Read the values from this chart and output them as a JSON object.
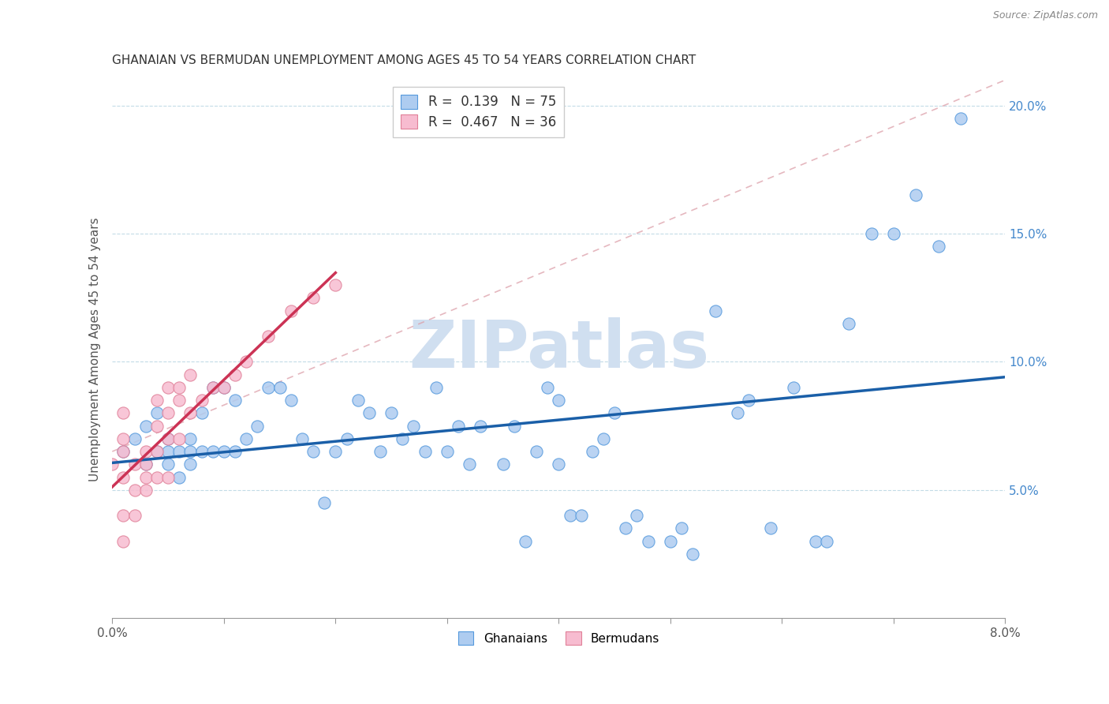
{
  "title": "GHANAIAN VS BERMUDAN UNEMPLOYMENT AMONG AGES 45 TO 54 YEARS CORRELATION CHART",
  "source": "Source: ZipAtlas.com",
  "ylabel": "Unemployment Among Ages 45 to 54 years",
  "xlim": [
    0.0,
    0.08
  ],
  "ylim": [
    0.0,
    0.21
  ],
  "ghanaian_R": 0.139,
  "ghanaian_N": 75,
  "bermudan_R": 0.467,
  "bermudan_N": 36,
  "blue_scatter_color": "#aeccf0",
  "blue_edge_color": "#5599dd",
  "pink_scatter_color": "#f7bcd0",
  "pink_edge_color": "#e08098",
  "blue_line_color": "#1a5fa8",
  "pink_line_color": "#cc3355",
  "diag_color": "#dda0aa",
  "ytick_color": "#4488cc",
  "watermark_color": "#d0dff0",
  "ghanaians_x": [
    0.001,
    0.002,
    0.003,
    0.003,
    0.004,
    0.004,
    0.005,
    0.005,
    0.005,
    0.006,
    0.006,
    0.007,
    0.007,
    0.007,
    0.008,
    0.008,
    0.009,
    0.009,
    0.01,
    0.01,
    0.011,
    0.011,
    0.012,
    0.013,
    0.014,
    0.015,
    0.016,
    0.017,
    0.018,
    0.019,
    0.02,
    0.021,
    0.022,
    0.023,
    0.024,
    0.025,
    0.026,
    0.027,
    0.028,
    0.029,
    0.03,
    0.031,
    0.032,
    0.033,
    0.035,
    0.036,
    0.037,
    0.038,
    0.039,
    0.04,
    0.04,
    0.041,
    0.042,
    0.043,
    0.044,
    0.045,
    0.046,
    0.047,
    0.048,
    0.05,
    0.051,
    0.052,
    0.054,
    0.056,
    0.057,
    0.059,
    0.061,
    0.063,
    0.064,
    0.066,
    0.068,
    0.07,
    0.072,
    0.074,
    0.076
  ],
  "ghanaians_y": [
    0.065,
    0.07,
    0.06,
    0.075,
    0.065,
    0.08,
    0.06,
    0.07,
    0.065,
    0.065,
    0.055,
    0.06,
    0.07,
    0.065,
    0.065,
    0.08,
    0.065,
    0.09,
    0.065,
    0.09,
    0.065,
    0.085,
    0.07,
    0.075,
    0.09,
    0.09,
    0.085,
    0.07,
    0.065,
    0.045,
    0.065,
    0.07,
    0.085,
    0.08,
    0.065,
    0.08,
    0.07,
    0.075,
    0.065,
    0.09,
    0.065,
    0.075,
    0.06,
    0.075,
    0.06,
    0.075,
    0.03,
    0.065,
    0.09,
    0.06,
    0.085,
    0.04,
    0.04,
    0.065,
    0.07,
    0.08,
    0.035,
    0.04,
    0.03,
    0.03,
    0.035,
    0.025,
    0.12,
    0.08,
    0.085,
    0.035,
    0.09,
    0.03,
    0.03,
    0.115,
    0.15,
    0.15,
    0.165,
    0.145,
    0.195
  ],
  "bermudans_x": [
    0.0,
    0.001,
    0.001,
    0.001,
    0.001,
    0.001,
    0.001,
    0.002,
    0.002,
    0.002,
    0.003,
    0.003,
    0.003,
    0.003,
    0.004,
    0.004,
    0.004,
    0.004,
    0.005,
    0.005,
    0.005,
    0.005,
    0.006,
    0.006,
    0.006,
    0.007,
    0.007,
    0.008,
    0.009,
    0.01,
    0.011,
    0.012,
    0.014,
    0.016,
    0.018,
    0.02
  ],
  "bermudans_y": [
    0.06,
    0.03,
    0.04,
    0.055,
    0.065,
    0.07,
    0.08,
    0.04,
    0.05,
    0.06,
    0.05,
    0.055,
    0.06,
    0.065,
    0.055,
    0.065,
    0.075,
    0.085,
    0.055,
    0.07,
    0.08,
    0.09,
    0.07,
    0.085,
    0.09,
    0.08,
    0.095,
    0.085,
    0.09,
    0.09,
    0.095,
    0.1,
    0.11,
    0.12,
    0.125,
    0.13
  ]
}
